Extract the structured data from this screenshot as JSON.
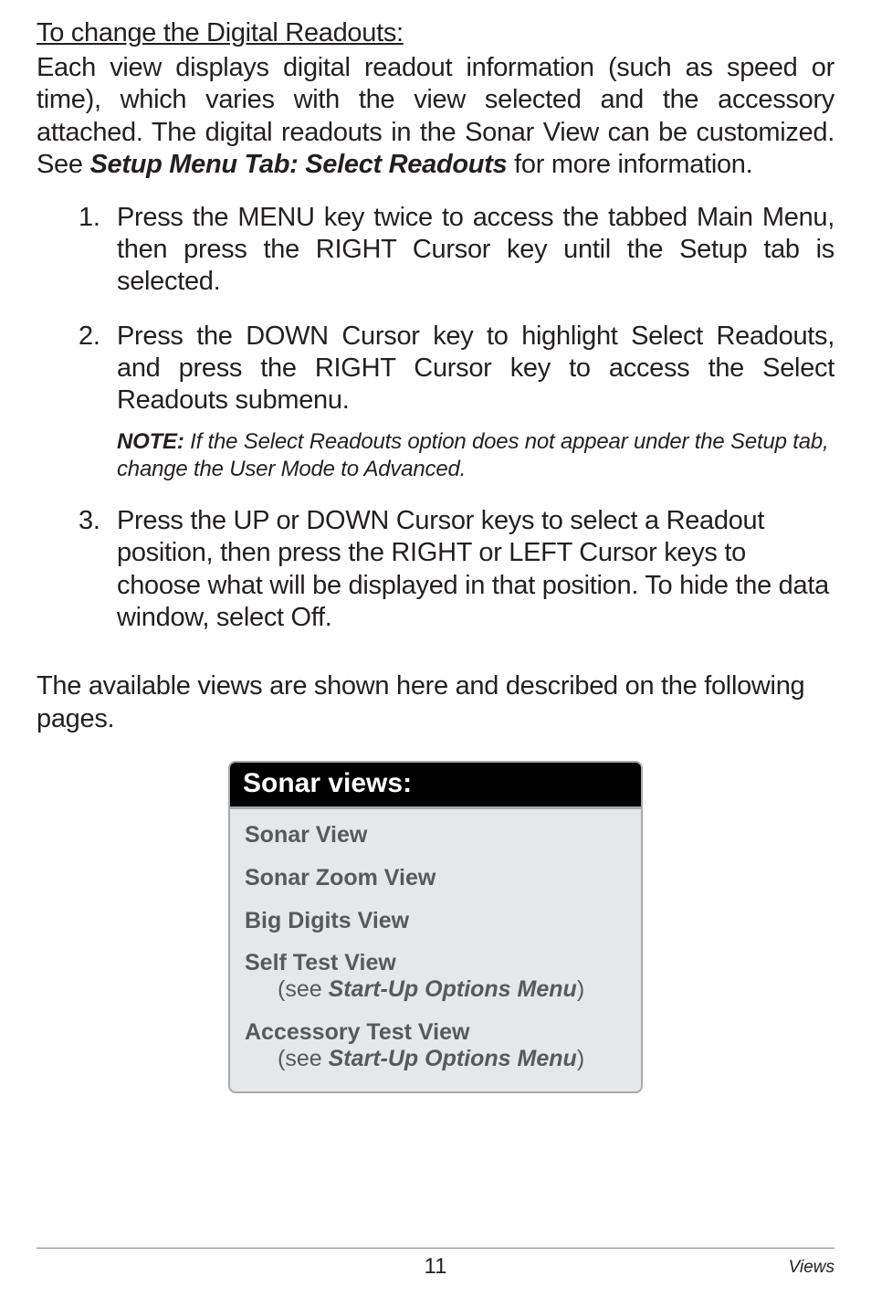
{
  "heading": "To change the Digital Readouts:",
  "intro": {
    "text_before": "Each view displays digital readout information (such as speed or time), which varies with the view selected and the accessory attached. The digital readouts in the Sonar View can be customized. See ",
    "emphasis": "Setup Menu Tab: Select Readouts",
    "text_after": " for more information."
  },
  "steps": [
    {
      "num": "1.",
      "text": "Press the MENU key twice to access the tabbed Main Menu, then press the RIGHT Cursor key until the Setup tab is selected."
    },
    {
      "num": "2.",
      "text": "Press the DOWN Cursor key to highlight Select Readouts, and press the RIGHT Cursor key to access the Select Readouts submenu.",
      "note_label": "NOTE:",
      "note_text": " If the Select Readouts option does not appear under the Setup tab, change the User Mode to Advanced."
    },
    {
      "num": "3.",
      "text": "Press the UP or DOWN Cursor keys to select a Readout position, then press the RIGHT or LEFT Cursor keys to choose what will be displayed in that position. To hide the data window, select Off."
    }
  ],
  "transition": "The available views are shown here and described on the following pages.",
  "panel": {
    "title": "Sonar views:",
    "items": [
      {
        "title": "Sonar View"
      },
      {
        "title": "Sonar Zoom View"
      },
      {
        "title": "Big Digits View"
      },
      {
        "title": "Self Test View",
        "sub_prefix": "(see ",
        "sub_emph": "Start-Up Options Menu",
        "sub_suffix": ")"
      },
      {
        "title": "Accessory Test View",
        "sub_prefix": "(see ",
        "sub_emph": "Start-Up Options Menu",
        "sub_suffix": ")"
      }
    ]
  },
  "footer": {
    "page": "11",
    "section": "Views"
  }
}
